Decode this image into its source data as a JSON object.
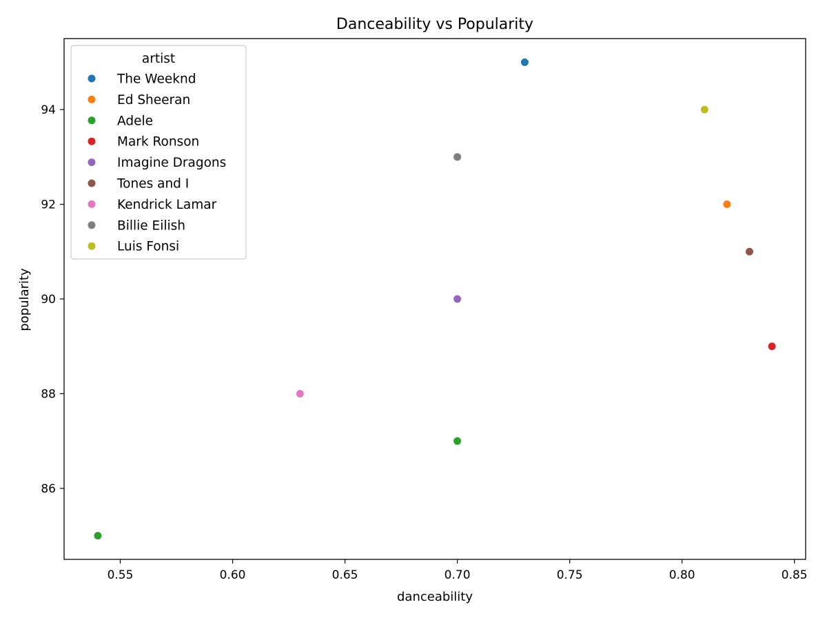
{
  "chart_data": {
    "type": "scatter",
    "title": "Danceability vs Popularity",
    "xlabel": "danceability",
    "ylabel": "popularity",
    "xlim": [
      0.525,
      0.855
    ],
    "ylim": [
      84.5,
      95.5
    ],
    "xticks": [
      0.55,
      0.6,
      0.65,
      0.7,
      0.75,
      0.8,
      0.85
    ],
    "xtick_labels": [
      "0.55",
      "0.60",
      "0.65",
      "0.70",
      "0.75",
      "0.80",
      "0.85"
    ],
    "yticks": [
      86,
      88,
      90,
      92,
      94
    ],
    "ytick_labels": [
      "86",
      "88",
      "90",
      "92",
      "94"
    ],
    "grid": false,
    "legend": {
      "title": "artist",
      "placement": "top-left"
    },
    "series": [
      {
        "name": "The Weeknd",
        "color": "#1f77b4",
        "points": [
          {
            "x": 0.73,
            "y": 95
          }
        ]
      },
      {
        "name": "Ed Sheeran",
        "color": "#ff7f0e",
        "points": [
          {
            "x": 0.82,
            "y": 92
          }
        ]
      },
      {
        "name": "Adele",
        "color": "#2ca02c",
        "points": [
          {
            "x": 0.7,
            "y": 87
          },
          {
            "x": 0.54,
            "y": 85
          }
        ]
      },
      {
        "name": "Mark Ronson",
        "color": "#d62728",
        "points": [
          {
            "x": 0.84,
            "y": 89
          }
        ]
      },
      {
        "name": "Imagine Dragons",
        "color": "#9467bd",
        "points": [
          {
            "x": 0.7,
            "y": 90
          }
        ]
      },
      {
        "name": "Tones and I",
        "color": "#8c564b",
        "points": [
          {
            "x": 0.83,
            "y": 91
          }
        ]
      },
      {
        "name": "Kendrick Lamar",
        "color": "#e377c2",
        "points": [
          {
            "x": 0.63,
            "y": 88
          }
        ]
      },
      {
        "name": "Billie Eilish",
        "color": "#7f7f7f",
        "points": [
          {
            "x": 0.7,
            "y": 93
          }
        ]
      },
      {
        "name": "Luis Fonsi",
        "color": "#bcbd22",
        "points": [
          {
            "x": 0.81,
            "y": 94
          }
        ]
      }
    ]
  }
}
